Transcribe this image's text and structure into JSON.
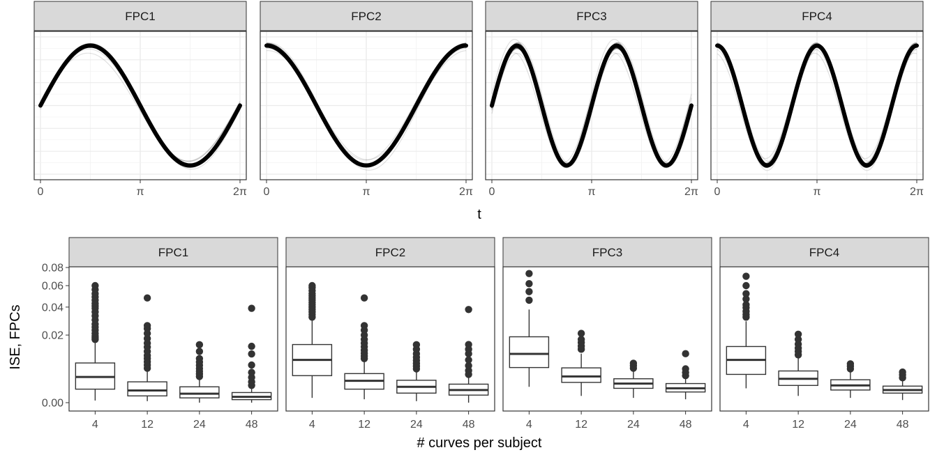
{
  "chart_data": [
    {
      "type": "line",
      "description": "Estimated FPC curves across simulation replicates (many overlapping black lines)",
      "panels": [
        "FPC1",
        "FPC2",
        "FPC3",
        "FPC4"
      ],
      "xlabel": "t",
      "x_ticks": [
        "0",
        "π",
        "2π"
      ],
      "x_range": [
        0,
        6.2832
      ],
      "y_ticks_shown": false,
      "grid": true,
      "curves": [
        {
          "panel": "FPC1",
          "function": "sin(t)"
        },
        {
          "panel": "FPC2",
          "function": "cos(t)"
        },
        {
          "panel": "FPC3",
          "function": "sin(2t)"
        },
        {
          "panel": "FPC4",
          "function": "cos(2t)"
        }
      ]
    },
    {
      "type": "box",
      "panels": [
        "FPC1",
        "FPC2",
        "FPC3",
        "FPC4"
      ],
      "xlabel": "# curves per subject",
      "ylabel": "ISE, FPCs",
      "categories": [
        "4",
        "12",
        "24",
        "48"
      ],
      "y_scale": "sqrt",
      "y_ticks": [
        0.0,
        0.02,
        0.04,
        0.06,
        0.08
      ],
      "y_tick_labels": [
        "0.00",
        "0.02",
        "0.04",
        "0.06",
        "0.08"
      ],
      "ylim": [
        0,
        0.08
      ],
      "series": [
        {
          "panel": "FPC1",
          "boxes": [
            {
              "category": "4",
              "q1": 0.0008,
              "median": 0.0029,
              "q3": 0.0069,
              "whisker_low": 2e-05,
              "whisker_high": 0.016,
              "outliers": [
                0.0175,
                0.0185,
                0.0195,
                0.021,
                0.023,
                0.025,
                0.027,
                0.03,
                0.033,
                0.036,
                0.039,
                0.041,
                0.043,
                0.046,
                0.049,
                0.052,
                0.056,
                0.06
              ]
            },
            {
              "category": "12",
              "q1": 0.0002,
              "median": 0.00065,
              "q3": 0.0019,
              "whisker_low": 1e-05,
              "whisker_high": 0.0043,
              "outliers": [
                0.0052,
                0.0062,
                0.0073,
                0.0085,
                0.0097,
                0.0115,
                0.0135,
                0.0155,
                0.018,
                0.021,
                0.024,
                0.026,
                0.048
              ]
            },
            {
              "category": "24",
              "q1": 0.0001,
              "median": 0.00035,
              "q3": 0.0011,
              "whisker_low": 0.0,
              "whisker_high": 0.0024,
              "outliers": [
                0.003,
                0.0036,
                0.0043,
                0.0051,
                0.0061,
                0.0072,
                0.0085,
                0.0115,
                0.0147
              ]
            },
            {
              "category": "48",
              "q1": 4e-05,
              "median": 0.00015,
              "q3": 0.00045,
              "whisker_low": 0.0,
              "whisker_high": 0.00095,
              "outliers": [
                0.0013,
                0.0019,
                0.0028,
                0.004,
                0.0062,
                0.0104,
                0.0139,
                0.039
              ]
            }
          ]
        },
        {
          "panel": "FPC2",
          "boxes": [
            {
              "category": "4",
              "q1": 0.0032,
              "median": 0.008,
              "q3": 0.0148,
              "whisker_low": 0.0001,
              "whisker_high": 0.03,
              "outliers": [
                0.032,
                0.034,
                0.036,
                0.038,
                0.04,
                0.042,
                0.044,
                0.046,
                0.048,
                0.05,
                0.052,
                0.055,
                0.058,
                0.06
              ]
            },
            {
              "category": "12",
              "q1": 0.0008,
              "median": 0.0021,
              "q3": 0.0037,
              "whisker_low": 5e-05,
              "whisker_high": 0.0073,
              "outliers": [
                0.0085,
                0.0095,
                0.0107,
                0.012,
                0.0137,
                0.0155,
                0.0175,
                0.02,
                0.023,
                0.026,
                0.048
              ]
            },
            {
              "category": "24",
              "q1": 0.0004,
              "median": 0.0011,
              "q3": 0.0022,
              "whisker_low": 1e-05,
              "whisker_high": 0.0043,
              "outliers": [
                0.005,
                0.0058,
                0.0067,
                0.0078,
                0.009,
                0.0105,
                0.0125,
                0.0147
              ]
            },
            {
              "category": "48",
              "q1": 0.00025,
              "median": 0.0007,
              "q3": 0.0015,
              "whisker_low": 0.0,
              "whisker_high": 0.0028,
              "outliers": [
                0.0035,
                0.0045,
                0.006,
                0.008,
                0.0105,
                0.0125,
                0.0148,
                0.038
              ]
            }
          ]
        },
        {
          "panel": "FPC3",
          "boxes": [
            {
              "category": "4",
              "q1": 0.0054,
              "median": 0.0104,
              "q3": 0.019,
              "whisker_low": 0.0011,
              "whisker_high": 0.038,
              "outliers": [
                0.046,
                0.054,
                0.062,
                0.073
              ]
            },
            {
              "category": "12",
              "q1": 0.0018,
              "median": 0.003,
              "q3": 0.0053,
              "whisker_low": 0.0002,
              "whisker_high": 0.0105,
              "outliers": [
                0.0125,
                0.014,
                0.0158,
                0.0175,
                0.021
              ]
            },
            {
              "category": "24",
              "q1": 0.0009,
              "median": 0.0016,
              "q3": 0.0025,
              "whisker_low": 0.0001,
              "whisker_high": 0.0045,
              "outliers": [
                0.0052,
                0.006,
                0.0068
              ]
            },
            {
              "category": "48",
              "q1": 0.0005,
              "median": 0.0009,
              "q3": 0.0016,
              "whisker_low": 5e-05,
              "whisker_high": 0.0027,
              "outliers": [
                0.0032,
                0.004,
                0.005,
                0.0105
              ]
            }
          ]
        },
        {
          "panel": "FPC4",
          "boxes": [
            {
              "category": "4",
              "q1": 0.0035,
              "median": 0.008,
              "q3": 0.0138,
              "whisker_low": 0.0009,
              "whisker_high": 0.029,
              "outliers": [
                0.032,
                0.034,
                0.0365,
                0.0395,
                0.042,
                0.047,
                0.052,
                0.06,
                0.07
              ]
            },
            {
              "category": "12",
              "q1": 0.0013,
              "median": 0.0025,
              "q3": 0.0044,
              "whisker_low": 0.0002,
              "whisker_high": 0.0087,
              "outliers": [
                0.01,
                0.0115,
                0.013,
                0.015,
                0.0175,
                0.0205
              ]
            },
            {
              "category": "24",
              "q1": 0.0007,
              "median": 0.0013,
              "q3": 0.0023,
              "whisker_low": 0.0001,
              "whisker_high": 0.0043,
              "outliers": [
                0.005,
                0.0058,
                0.0066
              ]
            },
            {
              "category": "48",
              "q1": 0.0004,
              "median": 0.0007,
              "q3": 0.0012,
              "whisker_low": 3e-05,
              "whisker_high": 0.0021,
              "outliers": [
                0.0027,
                0.0034,
                0.0041
              ]
            }
          ]
        }
      ]
    }
  ],
  "colors": {
    "strip_fill": "#d9d9d9",
    "strip_border": "#333333",
    "grid_major": "#ebebeb",
    "grid_minor": "#f2f2f2",
    "curve": "#000000",
    "box_line": "#333333",
    "text": "#4d4d4d"
  }
}
